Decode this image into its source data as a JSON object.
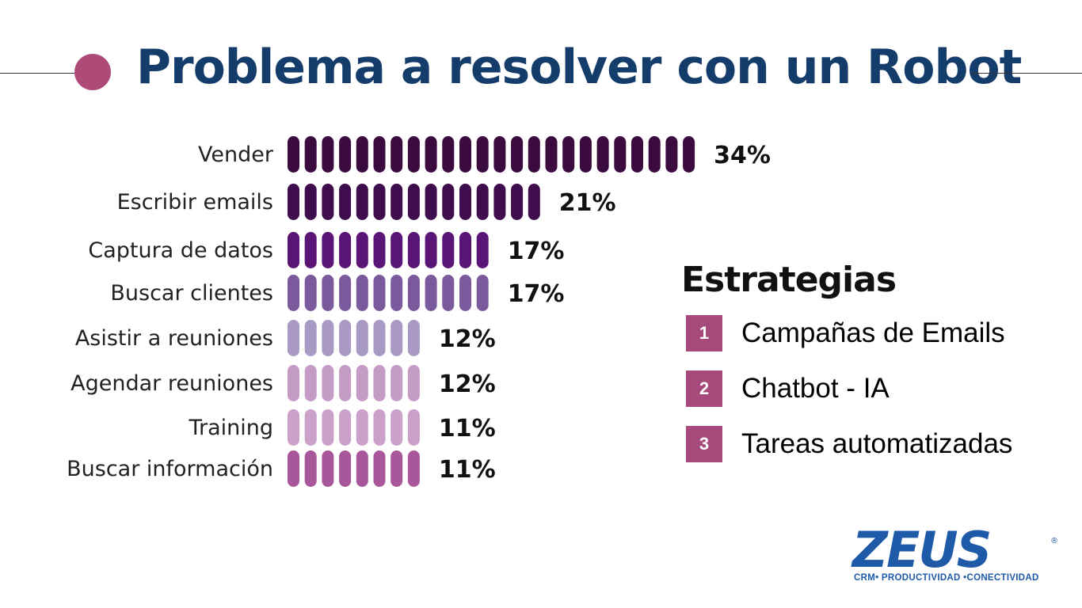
{
  "slide": {
    "title": "Problema a resolver con un Robot"
  },
  "chart_data": {
    "type": "bar",
    "categories": [
      "Vender",
      "Escribir emails",
      "Captura de datos",
      "Buscar clientes",
      "Asistir a reuniones",
      "Agendar reuniones",
      "Training",
      "Buscar información"
    ],
    "values": [
      34,
      21,
      17,
      17,
      12,
      12,
      11,
      11
    ],
    "value_labels": [
      "34%",
      "21%",
      "17%",
      "17%",
      "12%",
      "12%",
      "11%",
      "11%"
    ],
    "colors": [
      "#3b0a3f",
      "#3f0d4e",
      "#5a1475",
      "#7a5a9c",
      "#a89ac4",
      "#c49cc6",
      "#cba0c9",
      "#a8579a"
    ],
    "orientation": "horizontal",
    "title": "",
    "xlabel": "",
    "ylabel": ""
  },
  "strategies": {
    "heading": "Estrategias",
    "items": [
      {
        "number": "1",
        "label": "Campañas de Emails"
      },
      {
        "number": "2",
        "label": "Chatbot - IA"
      },
      {
        "number": "3",
        "label": "Tareas automatizadas"
      }
    ],
    "badge_color": "#a64a7c"
  },
  "logo": {
    "word": "ZEUS",
    "registered": "®",
    "tagline": "CRM• PRODUCTIVIDAD •CONECTIVIDAD"
  }
}
